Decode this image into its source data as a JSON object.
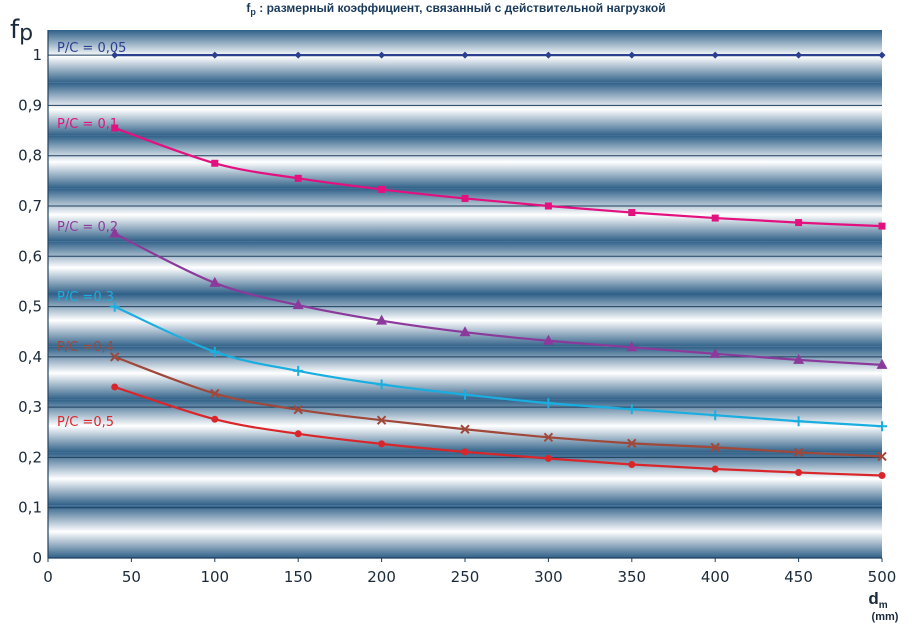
{
  "chart_data": {
    "type": "line",
    "title": {
      "main": "f",
      "sub": "p",
      "rest": " : размерный коэффициент, связанный с действительной нагрузкой"
    },
    "ylabel": {
      "main": "f",
      "sub": "p"
    },
    "xlabel": {
      "main": "d",
      "sub": "m",
      "unit": "(mm)"
    },
    "xlim": [
      0,
      500
    ],
    "ylim": [
      0,
      1.05
    ],
    "x_ticks": [
      "0",
      "50",
      "100",
      "150",
      "200",
      "250",
      "300",
      "350",
      "400",
      "450",
      "500"
    ],
    "y_ticks": [
      "0",
      "0,1",
      "0,2",
      "0,3",
      "0,4",
      "0,5",
      "0,6",
      "0,7",
      "0,8",
      "0,9",
      "1"
    ],
    "grid": true,
    "x": [
      40,
      100,
      150,
      200,
      250,
      300,
      350,
      400,
      450,
      500
    ],
    "series": [
      {
        "name": "P/C = 0,05",
        "color": "#2b3f8f",
        "marker": "diamond",
        "values": [
          1,
          1,
          1,
          1,
          1,
          1,
          1,
          1,
          1,
          1
        ]
      },
      {
        "name": "P/C = 0,1",
        "color": "#e3117f",
        "marker": "square",
        "values": [
          0.855,
          0.785,
          0.755,
          0.733,
          0.715,
          0.7,
          0.687,
          0.676,
          0.667,
          0.66
        ]
      },
      {
        "name": "P/C = 0,2",
        "color": "#8b3a9b",
        "marker": "triangle",
        "values": [
          0.645,
          0.547,
          0.503,
          0.472,
          0.449,
          0.432,
          0.419,
          0.406,
          0.394,
          0.384
        ]
      },
      {
        "name": "P/C =0,3",
        "color": "#1aaee0",
        "marker": "plus",
        "values": [
          0.5,
          0.41,
          0.372,
          0.345,
          0.325,
          0.308,
          0.296,
          0.284,
          0.272,
          0.262
        ]
      },
      {
        "name": "P/C =0,4",
        "color": "#a0483a",
        "marker": "cross",
        "values": [
          0.4,
          0.327,
          0.295,
          0.274,
          0.256,
          0.24,
          0.228,
          0.22,
          0.21,
          0.202
        ]
      },
      {
        "name": "P/C =0,5",
        "color": "#d9262a",
        "marker": "circle",
        "values": [
          0.34,
          0.276,
          0.247,
          0.227,
          0.211,
          0.198,
          0.186,
          0.177,
          0.17,
          0.164
        ]
      }
    ],
    "background_colors": {
      "top": "#2f6088",
      "mid": "#ffffff",
      "bottom": "#2f6088",
      "grid": "#1e3f5e"
    }
  }
}
